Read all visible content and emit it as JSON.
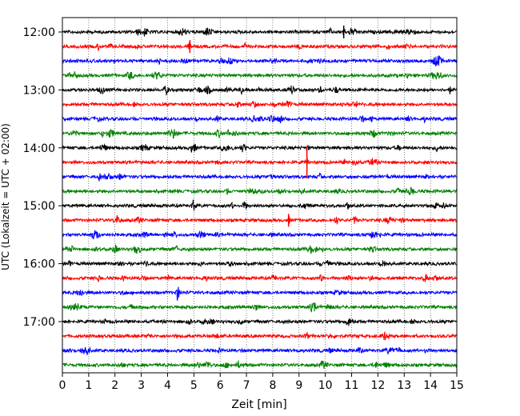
{
  "chart_data": {
    "type": "line",
    "xlabel": "Zeit  [min]",
    "ylabel": "UTC (Lokalzeit = UTC + 02:00)",
    "xlim": [
      0,
      15
    ],
    "x_ticks": [
      "0",
      "1",
      "2",
      "3",
      "4",
      "5",
      "6",
      "7",
      "8",
      "9",
      "10",
      "11",
      "12",
      "13",
      "14",
      "15"
    ],
    "y_ticks": [
      {
        "label": "12:00",
        "trace_index": 0
      },
      {
        "label": "13:00",
        "trace_index": 4
      },
      {
        "label": "14:00",
        "trace_index": 8
      },
      {
        "label": "15:00",
        "trace_index": 12
      },
      {
        "label": "16:00",
        "trace_index": 16
      },
      {
        "label": "17:00",
        "trace_index": 20
      }
    ],
    "trace_interval_min": 15,
    "trace_count": 24,
    "trace_colors": [
      "#000000",
      "#ff0000",
      "#0000ff",
      "#008000"
    ],
    "grid": "vertical dotted lines at each minute",
    "notable_events": [
      {
        "trace_index": 0,
        "x": 10.7
      },
      {
        "trace_index": 9,
        "x": 9.3
      },
      {
        "trace_index": 1,
        "x": 4.85
      },
      {
        "trace_index": 13,
        "x": 8.6
      }
    ]
  }
}
